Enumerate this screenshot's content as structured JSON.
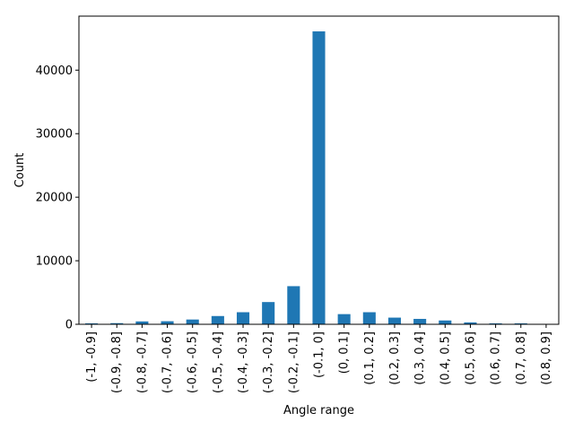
{
  "chart_data": {
    "type": "bar",
    "categories": [
      "(-1, -0.9]",
      "(-0.9, -0.8]",
      "(-0.8, -0.7]",
      "(-0.7, -0.6]",
      "(-0.6, -0.5]",
      "(-0.5, -0.4]",
      "(-0.4, -0.3]",
      "(-0.3, -0.2]",
      "(-0.2, -0.1]",
      "(-0.1, 0]",
      "(0, 0.1]",
      "(0.1, 0.2]",
      "(0.2, 0.3]",
      "(0.3, 0.4]",
      "(0.4, 0.5]",
      "(0.5, 0.6]",
      "(0.6, 0.7]",
      "(0.7, 0.8]",
      "(0.8, 0.9]"
    ],
    "values": [
      150,
      180,
      450,
      480,
      750,
      1300,
      1900,
      3500,
      6000,
      46100,
      1600,
      1900,
      1050,
      850,
      600,
      300,
      150,
      150,
      40
    ],
    "xlabel": "Angle range",
    "ylabel": "Count",
    "ylim": [
      0,
      48500
    ],
    "yticks": [
      "0",
      "10000",
      "20000",
      "30000",
      "40000"
    ],
    "ytick_values": [
      0,
      10000,
      20000,
      30000,
      40000
    ],
    "bar_color": "#1f77b4",
    "grid": false,
    "legend": "none"
  }
}
